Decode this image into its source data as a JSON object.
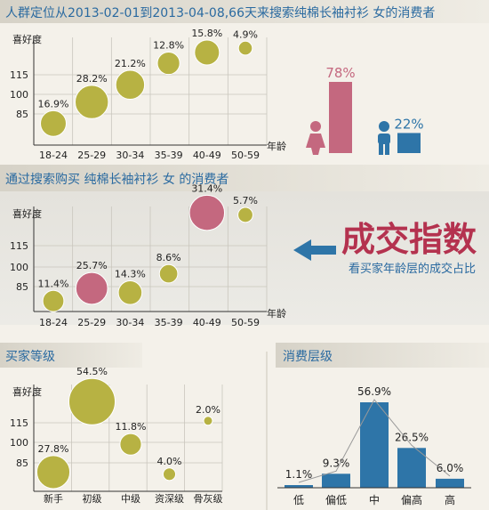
{
  "headers": {
    "section1_title": "人群定位从2013-02-01到2013-04-08,66天来搜索纯棉长袖衬衫 女的消费者",
    "section2_title": "通过搜索购买 纯棉长袖衬衫 女 的消费者",
    "section3_title": "买家等级",
    "section4_title": "消费层级"
  },
  "callout": {
    "title": "成交指数",
    "subtitle": "看买家年龄层的成交占比"
  },
  "colors": {
    "olive": "#b7b243",
    "pink": "#c4687f",
    "blue": "#2e75a8",
    "header_bg": "#dcd8cd",
    "band_bg": "#e8e6e0",
    "title_blue": "#2a6aa0"
  },
  "icons": {
    "female": "female-figure-icon",
    "male": "male-figure-icon",
    "arrow": "left-arrow-icon"
  },
  "chart_data": [
    {
      "type": "scatter",
      "name": "age-bubble-search",
      "ylabel": "喜好度",
      "xlabel": "年龄",
      "yticks": [
        "85",
        "100",
        "115"
      ],
      "categories": [
        "18-24",
        "25-29",
        "30-34",
        "35-39",
        "40-49",
        "50-59"
      ],
      "labels": [
        "16.9%",
        "28.2%",
        "21.2%",
        "12.8%",
        "15.8%",
        "4.9%"
      ],
      "values": [
        16.9,
        28.2,
        21.2,
        12.8,
        15.8,
        4.9
      ],
      "y": [
        85,
        95,
        103,
        113,
        118,
        120
      ]
    },
    {
      "type": "bar",
      "name": "gender-split",
      "categories": [
        "female",
        "male"
      ],
      "labels": [
        "78%",
        "22%"
      ],
      "values": [
        78,
        22
      ]
    },
    {
      "type": "scatter",
      "name": "age-bubble-purchase",
      "ylabel": "喜好度",
      "xlabel": "年龄",
      "yticks": [
        "85",
        "100",
        "115"
      ],
      "categories": [
        "18-24",
        "25-29",
        "30-34",
        "35-39",
        "40-49",
        "50-59"
      ],
      "labels": [
        "11.4%",
        "25.7%",
        "14.3%",
        "8.6%",
        "31.4%",
        "5.7%"
      ],
      "values": [
        11.4,
        25.7,
        14.3,
        8.6,
        31.4,
        5.7
      ],
      "y": [
        80,
        86,
        84,
        93,
        122,
        121
      ],
      "highlight": [
        1,
        4
      ]
    },
    {
      "type": "scatter",
      "name": "buyer-level-bubble",
      "ylabel": "喜好度",
      "yticks": [
        "85",
        "100",
        "115"
      ],
      "categories": [
        "新手",
        "初级",
        "中级",
        "资深级",
        "骨灰级"
      ],
      "labels": [
        "27.8%",
        "54.5%",
        "11.8%",
        "4.0%",
        "2.0%"
      ],
      "values": [
        27.8,
        54.5,
        11.8,
        4.0,
        2.0
      ],
      "y": [
        84,
        117,
        97,
        83,
        108
      ]
    },
    {
      "type": "bar",
      "name": "consumption-level",
      "categories": [
        "低",
        "偏低",
        "中",
        "偏高",
        "高"
      ],
      "labels": [
        "1.1%",
        "9.3%",
        "56.9%",
        "26.5%",
        "6.0%"
      ],
      "values": [
        1.1,
        9.3,
        56.9,
        26.5,
        6.0
      ]
    }
  ]
}
